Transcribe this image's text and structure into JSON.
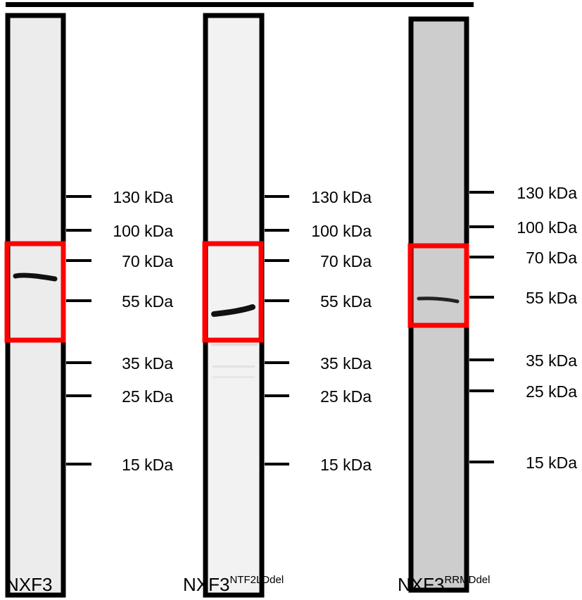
{
  "lanes": [
    {
      "name": "NXF3",
      "superscript": "",
      "background": "#ececec",
      "markers": [
        "130 kDa",
        "100 kDa",
        "70 kDa",
        "55 kDa",
        "35 kDa",
        "25 kDa",
        "15 kDa"
      ]
    },
    {
      "name": "NXF3",
      "superscript": "NTF2LDdel",
      "background": "#f2f2f2",
      "markers": [
        "130 kDa",
        "100 kDa",
        "70 kDa",
        "55 kDa",
        "35 kDa",
        "25 kDa",
        "15 kDa"
      ]
    },
    {
      "name": "NXF3",
      "superscript": "RRMDdel",
      "background": "#cdcdcd",
      "markers": [
        "130 kDa",
        "100 kDa",
        "70 kDa",
        "55 kDa",
        "35 kDa",
        "25 kDa",
        "15 kDa"
      ]
    }
  ],
  "colors": {
    "frame": "#000000",
    "highlight_box": "#ff0000",
    "band": "#111111"
  }
}
